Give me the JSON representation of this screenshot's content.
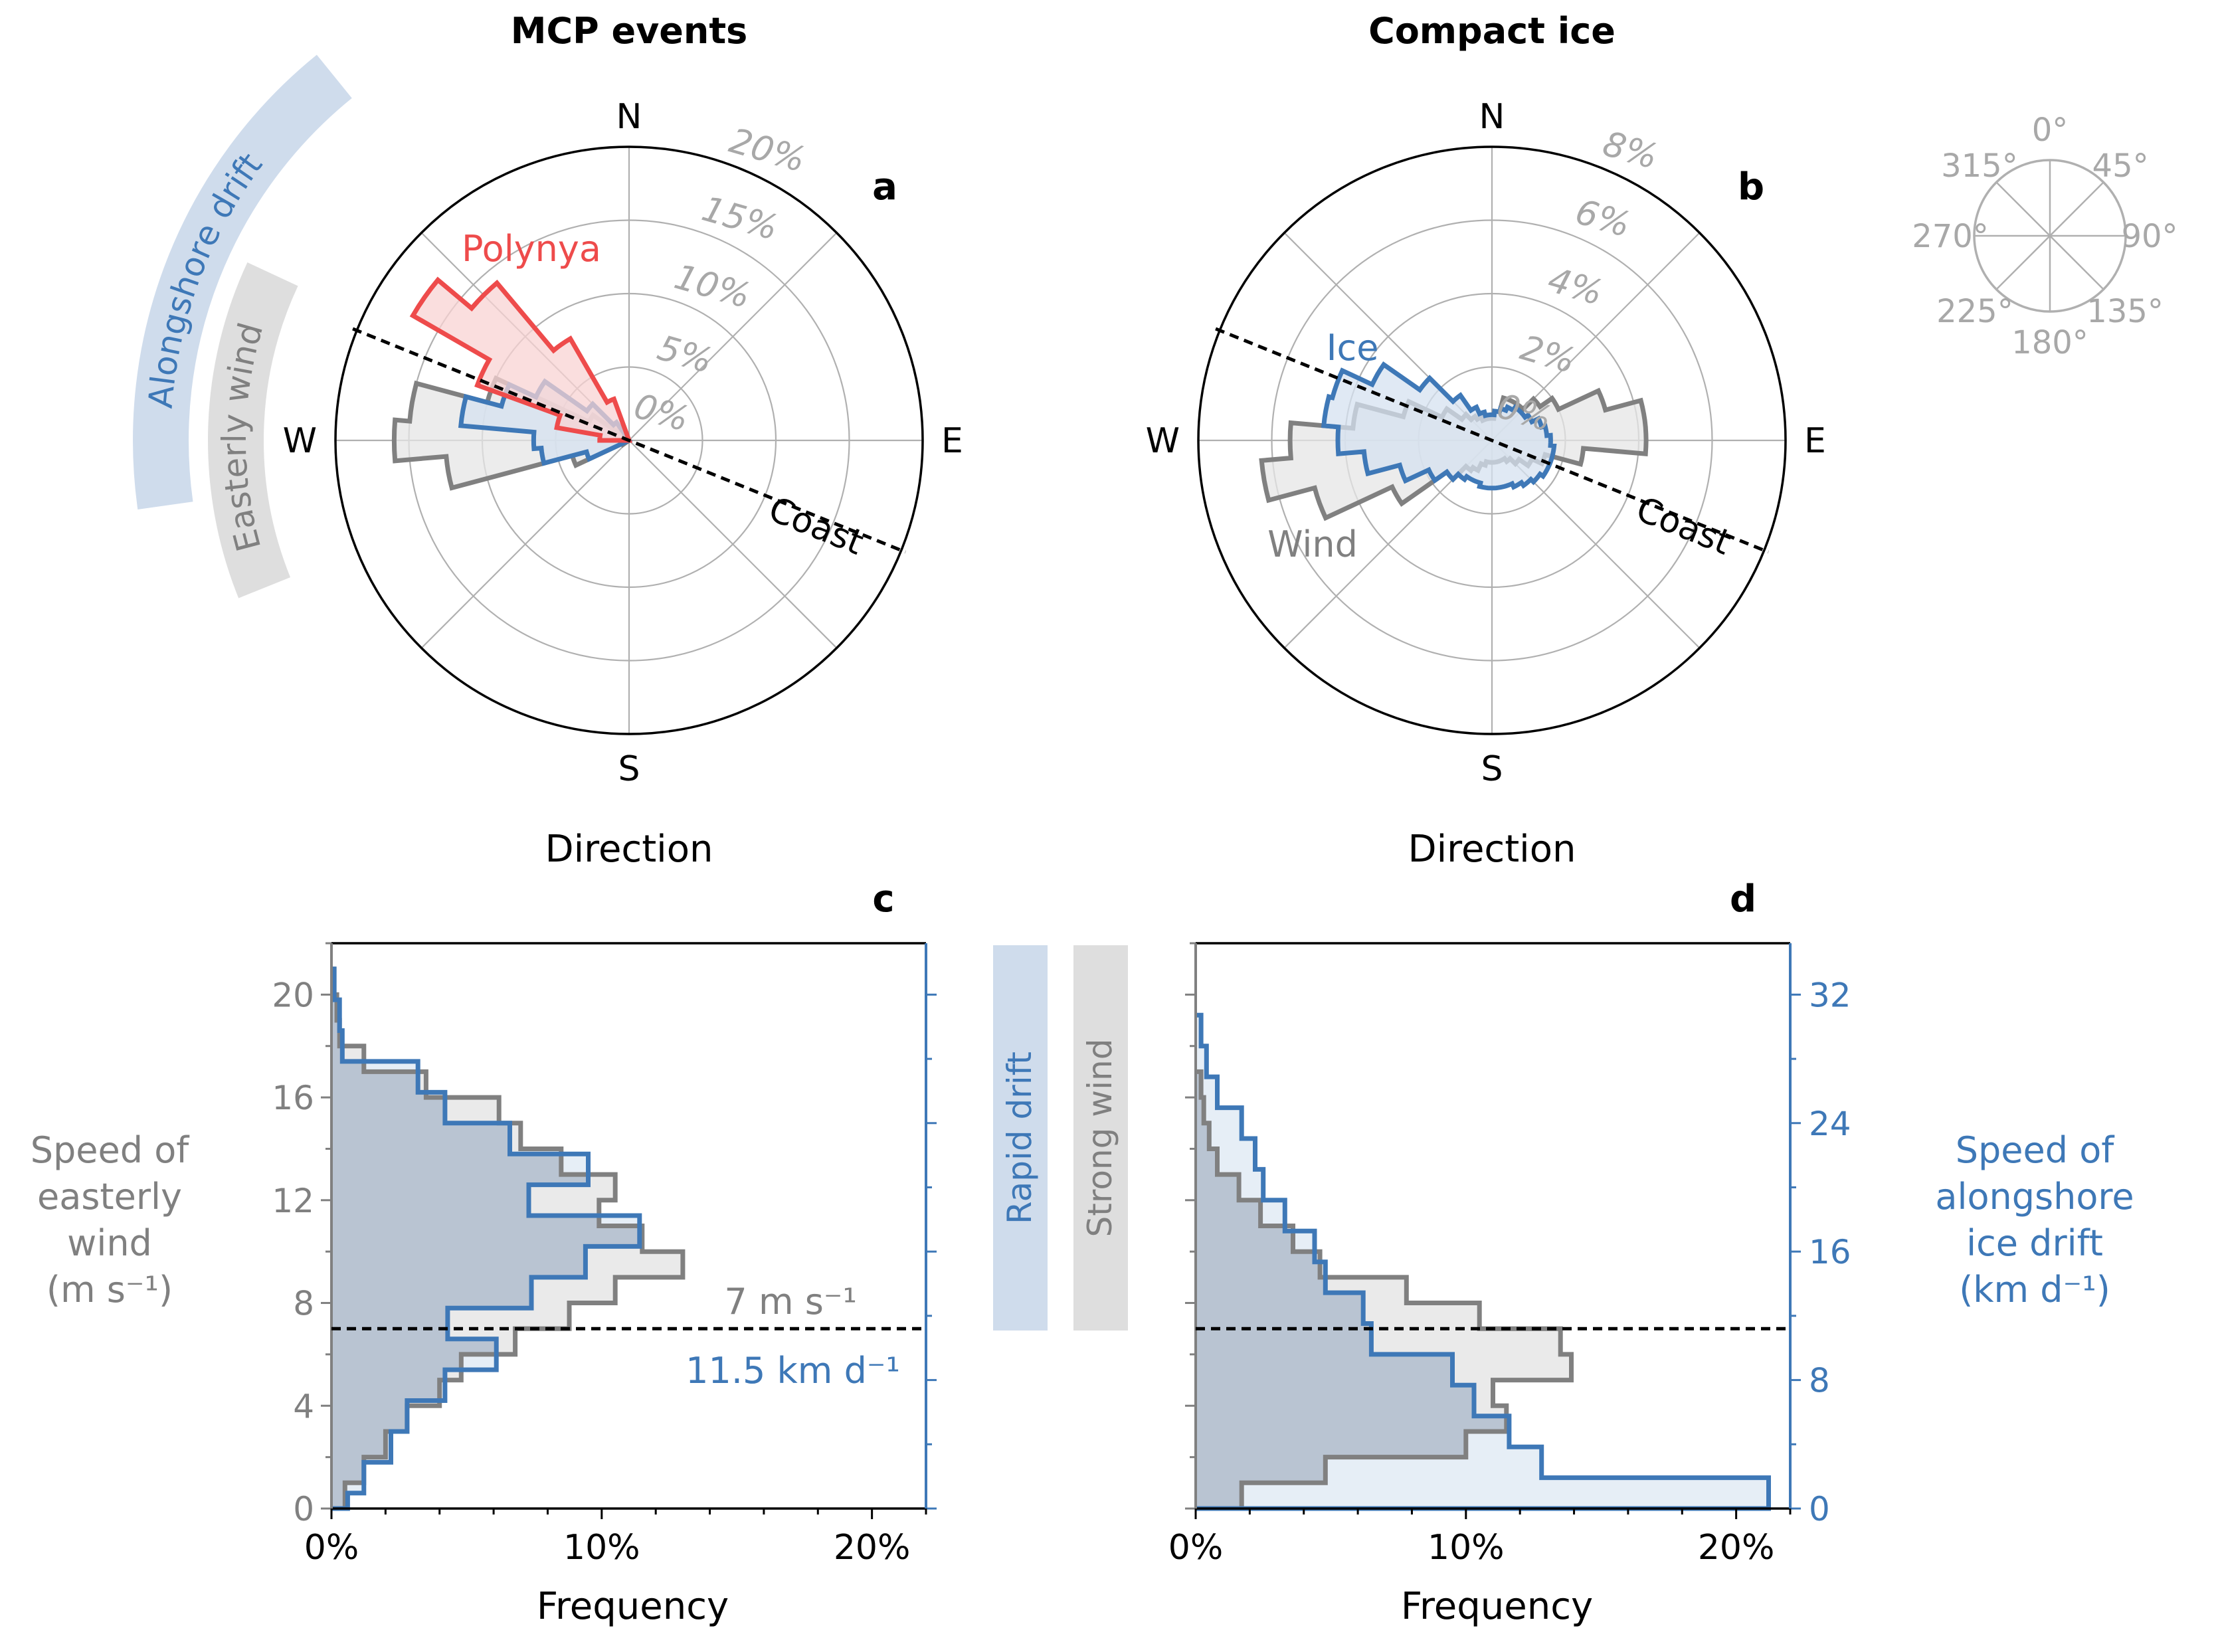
{
  "colors": {
    "wind": "#808080",
    "wind_fill": "#e6e6e6",
    "ice": "#3e78b7",
    "ice_fill": "#d6e2f0",
    "polynya": "#ee4b4b",
    "polynya_fill": "#f8d3d3",
    "grid": "#b0b0b0",
    "pct_label": "#a8a8a8",
    "band_blue": "#cfdcec",
    "band_gray": "#dedede",
    "axis_blue": "#3e78b7",
    "axis_gray": "#808080"
  },
  "chart_data": [
    {
      "id": "a",
      "type": "polar_histogram",
      "title": "MCP events",
      "panel_label": "a",
      "xlabel": "Direction",
      "compass": [
        "N",
        "E",
        "S",
        "W"
      ],
      "rmax": 20,
      "ring_ticks": [
        0,
        5,
        10,
        15,
        20
      ],
      "ring_labels": [
        "0%",
        "5%",
        "10%",
        "15%",
        "20%"
      ],
      "coast_bearing_deg": 292,
      "coast_label": "Coast",
      "bin_width_deg": 10,
      "series": [
        {
          "name": "Wind",
          "color_key": "wind",
          "bins": [
            [
              240,
              0.5
            ],
            [
              250,
              4
            ],
            [
              260,
              12.5
            ],
            [
              270,
              16
            ],
            [
              280,
              15
            ],
            [
              290,
              10
            ],
            [
              300,
              3
            ],
            [
              310,
              1
            ]
          ]
        },
        {
          "name": "Ice",
          "color_key": "ice",
          "bins": [
            [
              250,
              3
            ],
            [
              260,
              6
            ],
            [
              270,
              6.5
            ],
            [
              280,
              11.5
            ],
            [
              290,
              9
            ],
            [
              300,
              7
            ],
            [
              310,
              3.5
            ],
            [
              320,
              1.5
            ]
          ]
        },
        {
          "name": "Polynya",
          "color_key": "polynya",
          "bins": [
            [
              275,
              2
            ],
            [
              285,
              5
            ],
            [
              295,
              11
            ],
            [
              305,
              17
            ],
            [
              315,
              14
            ],
            [
              325,
              8
            ],
            [
              335,
              3
            ]
          ]
        }
      ],
      "annotations": [
        {
          "text": "Polynya",
          "color_key": "polynya"
        }
      ]
    },
    {
      "id": "b",
      "type": "polar_histogram",
      "title": "Compact ice",
      "panel_label": "b",
      "xlabel": "Direction",
      "compass": [
        "N",
        "E",
        "S",
        "W"
      ],
      "rmax": 8,
      "ring_ticks": [
        0,
        2,
        4,
        6,
        8
      ],
      "ring_labels": [
        "0%",
        "2%",
        "4%",
        "6%",
        "8%"
      ],
      "coast_bearing_deg": 292,
      "coast_label": "Coast",
      "bin_width_deg": 10,
      "series": [
        {
          "name": "Wind",
          "color_key": "wind",
          "bins": [
            [
              0,
              0.6
            ],
            [
              10,
              0.8
            ],
            [
              20,
              1.2
            ],
            [
              30,
              1.2
            ],
            [
              40,
              1.2
            ],
            [
              50,
              1.6
            ],
            [
              60,
              2.0
            ],
            [
              70,
              3.2
            ],
            [
              80,
              4.2
            ],
            [
              90,
              4.2
            ],
            [
              100,
              2.5
            ],
            [
              110,
              1.5
            ],
            [
              120,
              1.2
            ],
            [
              130,
              0.9
            ],
            [
              140,
              0.7
            ],
            [
              150,
              0.6
            ],
            [
              160,
              0.6
            ],
            [
              170,
              0.6
            ],
            [
              180,
              0.6
            ],
            [
              190,
              0.6
            ],
            [
              200,
              0.7
            ],
            [
              210,
              0.9
            ],
            [
              220,
              1.0
            ],
            [
              230,
              1.5
            ],
            [
              240,
              3.0
            ],
            [
              250,
              5.0
            ],
            [
              260,
              6.3
            ],
            [
              270,
              5.5
            ],
            [
              280,
              3.8
            ],
            [
              290,
              2.5
            ],
            [
              300,
              1.5
            ],
            [
              310,
              1.0
            ],
            [
              320,
              0.8
            ],
            [
              330,
              0.7
            ],
            [
              340,
              0.6
            ],
            [
              350,
              0.6
            ]
          ]
        },
        {
          "name": "Ice",
          "color_key": "ice",
          "bins": [
            [
              0,
              0.7
            ],
            [
              10,
              0.8
            ],
            [
              20,
              0.9
            ],
            [
              30,
              1.0
            ],
            [
              40,
              1.1
            ],
            [
              50,
              1.1
            ],
            [
              60,
              1.2
            ],
            [
              70,
              1.4
            ],
            [
              80,
              1.5
            ],
            [
              90,
              1.6
            ],
            [
              100,
              1.7
            ],
            [
              110,
              1.7
            ],
            [
              120,
              1.7
            ],
            [
              130,
              1.6
            ],
            [
              140,
              1.5
            ],
            [
              150,
              1.4
            ],
            [
              160,
              1.3
            ],
            [
              170,
              1.3
            ],
            [
              180,
              1.3
            ],
            [
              190,
              1.3
            ],
            [
              200,
              1.2
            ],
            [
              210,
              1.2
            ],
            [
              220,
              1.3
            ],
            [
              230,
              1.5
            ],
            [
              240,
              1.9
            ],
            [
              250,
              2.6
            ],
            [
              260,
              3.5
            ],
            [
              270,
              4.2
            ],
            [
              280,
              4.6
            ],
            [
              290,
              4.5
            ],
            [
              300,
              3.6
            ],
            [
              310,
              2.4
            ],
            [
              320,
              1.5
            ],
            [
              330,
              1.0
            ],
            [
              340,
              0.8
            ],
            [
              350,
              0.7
            ]
          ]
        }
      ],
      "annotations": [
        {
          "text": "Ice",
          "color_key": "ice"
        },
        {
          "text": "Wind",
          "color_key": "wind"
        }
      ]
    },
    {
      "id": "c",
      "type": "histogram",
      "panel_label": "c",
      "xlabel": "Frequency",
      "xlim": [
        0,
        22
      ],
      "xticks": [
        0,
        10,
        20
      ],
      "xtick_labels": [
        "0%",
        "10%",
        "20%"
      ],
      "left_axis": {
        "label": [
          "Speed of",
          "easterly",
          "wind",
          "(m s⁻¹)"
        ],
        "ylim": [
          0,
          22
        ],
        "ticks": [
          0,
          4,
          8,
          12,
          16,
          20
        ],
        "tick_labels": [
          "0",
          "4",
          "8",
          "12",
          "16",
          "20"
        ]
      },
      "right_axis": {
        "ylim": [
          0,
          35.2
        ],
        "ticks": [
          0,
          8,
          16,
          24,
          32
        ],
        "tick_labels": [],
        "minor_step": 4
      },
      "threshold": {
        "value": 7,
        "labels": [
          "7 m s⁻¹",
          "11.5 km d⁻¹"
        ]
      },
      "series": [
        {
          "name": "Wind",
          "color_key": "wind",
          "edges": [
            0,
            1,
            2,
            3,
            4,
            5,
            6,
            7,
            8,
            9,
            10,
            11,
            12,
            13,
            14,
            15,
            16,
            17,
            18,
            19,
            20,
            21,
            22
          ],
          "values": [
            0,
            0,
            0,
            0,
            0,
            0,
            0,
            0,
            0,
            0,
            0,
            0,
            0,
            0,
            0,
            0,
            0,
            0,
            0,
            0,
            0,
            0
          ],
          "steps": [
            [
              0,
              1,
              0.5
            ],
            [
              1,
              2,
              1.2
            ],
            [
              2,
              3,
              2.0
            ],
            [
              3,
              4,
              2.8
            ],
            [
              4,
              5,
              4.0
            ],
            [
              5,
              6,
              4.8
            ],
            [
              6,
              7,
              6.8
            ],
            [
              7,
              8,
              8.8
            ],
            [
              8,
              9,
              10.5
            ],
            [
              9,
              10,
              13.0
            ],
            [
              10,
              11,
              11.5
            ],
            [
              11,
              12,
              9.9
            ],
            [
              12,
              13,
              10.5
            ],
            [
              13,
              14,
              8.5
            ],
            [
              14,
              15,
              7.0
            ],
            [
              15,
              16,
              6.2
            ],
            [
              16,
              17,
              3.5
            ],
            [
              17,
              18,
              1.2
            ],
            [
              18,
              19,
              0.3
            ],
            [
              19,
              20,
              0.2
            ],
            [
              20,
              21,
              0.1
            ]
          ]
        },
        {
          "name": "Ice",
          "color_key": "ice",
          "steps": [
            [
              0,
              0.6,
              0.6
            ],
            [
              0.6,
              1.8,
              1.2
            ],
            [
              1.8,
              3.0,
              2.2
            ],
            [
              3.0,
              4.2,
              2.8
            ],
            [
              4.2,
              5.4,
              4.2
            ],
            [
              5.4,
              6.6,
              6.1
            ],
            [
              6.6,
              7.8,
              4.3
            ],
            [
              7.8,
              9.0,
              7.4
            ],
            [
              9.0,
              10.2,
              9.4
            ],
            [
              10.2,
              11.4,
              11.4
            ],
            [
              11.4,
              12.6,
              7.3
            ],
            [
              12.6,
              13.8,
              9.5
            ],
            [
              13.8,
              15.0,
              6.6
            ],
            [
              15.0,
              16.2,
              4.2
            ],
            [
              16.2,
              17.4,
              3.2
            ],
            [
              17.4,
              18.6,
              0.4
            ],
            [
              18.6,
              19.8,
              0.3
            ],
            [
              19.8,
              21.0,
              0.1
            ]
          ]
        }
      ]
    },
    {
      "id": "d",
      "type": "histogram",
      "panel_label": "d",
      "xlabel": "Frequency",
      "xlim": [
        0,
        22
      ],
      "xticks": [
        0,
        10,
        20
      ],
      "xtick_labels": [
        "0%",
        "10%",
        "20%"
      ],
      "left_axis": {
        "ylim": [
          0,
          22
        ],
        "ticks": [
          0,
          4,
          8,
          12,
          16,
          20
        ],
        "tick_labels": []
      },
      "right_axis": {
        "label": [
          "Speed of",
          "alongshore",
          "ice drift",
          "(km d⁻¹)"
        ],
        "ylim": [
          0,
          35.2
        ],
        "ticks": [
          0,
          8,
          16,
          24,
          32
        ],
        "tick_labels": [
          "0",
          "8",
          "16",
          "24",
          "32"
        ],
        "minor_step": 4
      },
      "threshold": {
        "value": 7
      },
      "series": [
        {
          "name": "Wind",
          "color_key": "wind",
          "steps": [
            [
              0,
              1,
              1.7
            ],
            [
              1,
              2,
              4.8
            ],
            [
              2,
              3,
              10.0
            ],
            [
              3,
              4,
              11.5
            ],
            [
              4,
              5,
              11.0
            ],
            [
              5,
              6,
              13.9
            ],
            [
              6,
              7,
              13.5
            ],
            [
              7,
              8,
              10.5
            ],
            [
              8,
              9,
              7.8
            ],
            [
              9,
              10,
              4.6
            ],
            [
              10,
              11,
              3.6
            ],
            [
              11,
              12,
              2.4
            ],
            [
              12,
              13,
              1.6
            ],
            [
              13,
              14,
              0.8
            ],
            [
              14,
              15,
              0.5
            ],
            [
              15,
              16,
              0.3
            ],
            [
              16,
              17,
              0.2
            ]
          ]
        },
        {
          "name": "Ice",
          "color_key": "ice",
          "steps": [
            [
              0,
              1.2,
              21.2
            ],
            [
              1.2,
              2.4,
              12.8
            ],
            [
              2.4,
              3.6,
              11.6
            ],
            [
              3.6,
              4.8,
              10.3
            ],
            [
              4.8,
              6.0,
              9.5
            ],
            [
              6.0,
              7.2,
              6.5
            ],
            [
              7.2,
              8.4,
              6.2
            ],
            [
              8.4,
              9.6,
              4.8
            ],
            [
              9.6,
              10.8,
              4.4
            ],
            [
              10.8,
              12.0,
              3.3
            ],
            [
              12.0,
              13.2,
              2.5
            ],
            [
              13.2,
              14.4,
              2.2
            ],
            [
              14.4,
              15.6,
              1.7
            ],
            [
              15.6,
              16.8,
              0.8
            ],
            [
              16.8,
              18.0,
              0.4
            ],
            [
              18.0,
              19.2,
              0.2
            ]
          ]
        }
      ]
    }
  ],
  "side_labels": {
    "alongshore_drift": "Alongshore drift",
    "easterly_wind": "Easterly wind",
    "rapid_drift": "Rapid drift",
    "strong_wind": "Strong wind"
  },
  "compass_legend": {
    "labels": [
      "0°",
      "45°",
      "90°",
      "135°",
      "180°",
      "225°",
      "270°",
      "315°"
    ]
  }
}
